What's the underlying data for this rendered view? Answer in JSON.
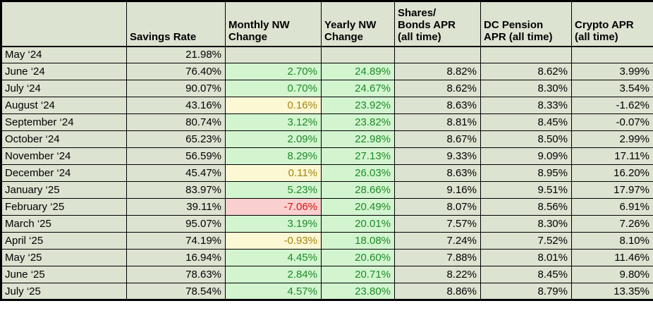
{
  "colors": {
    "page_bg": "#ffffff",
    "border": "#000000",
    "cell_bg": "#dde3d1",
    "green_bg": "#d2f5d0",
    "green_text": "#1e8a25",
    "yellow_bg": "#fcf8d4",
    "yellow_text": "#a8830f",
    "red_bg": "#f9d0cf",
    "red_text": "#d01414"
  },
  "table": {
    "columns": [
      {
        "key": "month",
        "label": ""
      },
      {
        "key": "savings-rate",
        "label": "Savings Rate"
      },
      {
        "key": "monthly-nw-change",
        "label": "Monthly NW\nChange"
      },
      {
        "key": "yearly-nw-change",
        "label": "Yearly NW\nChange"
      },
      {
        "key": "shares-bonds-apr",
        "label": "Shares/\nBonds APR\n(all time)"
      },
      {
        "key": "dc-pension-apr",
        "label": "DC Pension\nAPR (all time)"
      },
      {
        "key": "crypto-apr",
        "label": "Crypto APR\n(all time)"
      }
    ],
    "rows": [
      {
        "cells": [
          {
            "t": "May ‘24"
          },
          {
            "t": "21.98%"
          },
          {
            "t": ""
          },
          {
            "t": ""
          },
          {
            "t": ""
          },
          {
            "t": ""
          },
          {
            "t": ""
          }
        ]
      },
      {
        "cells": [
          {
            "t": "June ‘24"
          },
          {
            "t": "76.40%"
          },
          {
            "t": "2.70%",
            "s": "green"
          },
          {
            "t": "24.89%",
            "s": "green"
          },
          {
            "t": "8.82%"
          },
          {
            "t": "8.62%"
          },
          {
            "t": "3.99%"
          }
        ]
      },
      {
        "cells": [
          {
            "t": "July ‘24"
          },
          {
            "t": "90.07%"
          },
          {
            "t": "0.70%",
            "s": "green"
          },
          {
            "t": "24.67%",
            "s": "green"
          },
          {
            "t": "8.62%"
          },
          {
            "t": "8.30%"
          },
          {
            "t": "3.54%"
          }
        ]
      },
      {
        "cells": [
          {
            "t": "August ‘24"
          },
          {
            "t": "43.16%"
          },
          {
            "t": "0.16%",
            "s": "yellow"
          },
          {
            "t": "23.92%",
            "s": "green"
          },
          {
            "t": "8.63%"
          },
          {
            "t": "8.33%"
          },
          {
            "t": "-1.62%"
          }
        ]
      },
      {
        "cells": [
          {
            "t": "September ‘24"
          },
          {
            "t": "80.74%"
          },
          {
            "t": "3.12%",
            "s": "green"
          },
          {
            "t": "23.82%",
            "s": "green"
          },
          {
            "t": "8.81%"
          },
          {
            "t": "8.45%"
          },
          {
            "t": "-0.07%"
          }
        ]
      },
      {
        "cells": [
          {
            "t": "October ‘24"
          },
          {
            "t": "65.23%"
          },
          {
            "t": "2.09%",
            "s": "green"
          },
          {
            "t": "22.98%",
            "s": "green"
          },
          {
            "t": "8.67%"
          },
          {
            "t": "8.50%"
          },
          {
            "t": "2.99%"
          }
        ]
      },
      {
        "cells": [
          {
            "t": "November ‘24"
          },
          {
            "t": "56.59%"
          },
          {
            "t": "8.29%",
            "s": "green"
          },
          {
            "t": "27.13%",
            "s": "green"
          },
          {
            "t": "9.33%"
          },
          {
            "t": "9.09%"
          },
          {
            "t": "17.11%"
          }
        ]
      },
      {
        "cells": [
          {
            "t": "December ‘24"
          },
          {
            "t": "45.47%"
          },
          {
            "t": "0.11%",
            "s": "yellow"
          },
          {
            "t": "26.03%",
            "s": "green"
          },
          {
            "t": "8.63%"
          },
          {
            "t": "8.95%"
          },
          {
            "t": "16.20%"
          }
        ]
      },
      {
        "cells": [
          {
            "t": "January ‘25"
          },
          {
            "t": "83.97%"
          },
          {
            "t": "5.23%",
            "s": "green"
          },
          {
            "t": "28.66%",
            "s": "green"
          },
          {
            "t": "9.16%"
          },
          {
            "t": "9.51%"
          },
          {
            "t": "17.97%"
          }
        ]
      },
      {
        "cells": [
          {
            "t": "February ‘25"
          },
          {
            "t": "39.11%"
          },
          {
            "t": "-7.06%",
            "s": "red"
          },
          {
            "t": "20.49%",
            "s": "green"
          },
          {
            "t": "8.07%"
          },
          {
            "t": "8.56%"
          },
          {
            "t": "6.91%"
          }
        ]
      },
      {
        "cells": [
          {
            "t": "March ‘25"
          },
          {
            "t": "95.07%"
          },
          {
            "t": "3.19%",
            "s": "green"
          },
          {
            "t": "20.01%",
            "s": "green"
          },
          {
            "t": "7.57%"
          },
          {
            "t": "8.30%"
          },
          {
            "t": "7.26%"
          }
        ]
      },
      {
        "cells": [
          {
            "t": "April ‘25"
          },
          {
            "t": "74.19%"
          },
          {
            "t": "-0.93%",
            "s": "yellow"
          },
          {
            "t": "18.08%",
            "s": "green"
          },
          {
            "t": "7.24%"
          },
          {
            "t": "7.52%"
          },
          {
            "t": "8.10%"
          }
        ]
      },
      {
        "cells": [
          {
            "t": "May ‘25"
          },
          {
            "t": "16.94%"
          },
          {
            "t": "4.45%",
            "s": "green"
          },
          {
            "t": "20.60%",
            "s": "green"
          },
          {
            "t": "7.88%"
          },
          {
            "t": "8.01%"
          },
          {
            "t": "11.46%"
          }
        ]
      },
      {
        "cells": [
          {
            "t": "June ‘25"
          },
          {
            "t": "78.63%"
          },
          {
            "t": "2.84%",
            "s": "green"
          },
          {
            "t": "20.71%",
            "s": "green"
          },
          {
            "t": "8.22%"
          },
          {
            "t": "8.45%"
          },
          {
            "t": "9.80%"
          }
        ]
      },
      {
        "cells": [
          {
            "t": "July ‘25"
          },
          {
            "t": "78.54%"
          },
          {
            "t": "4.57%",
            "s": "green"
          },
          {
            "t": "23.80%",
            "s": "green"
          },
          {
            "t": "8.86%"
          },
          {
            "t": "8.79%"
          },
          {
            "t": "13.35%"
          }
        ]
      }
    ]
  }
}
